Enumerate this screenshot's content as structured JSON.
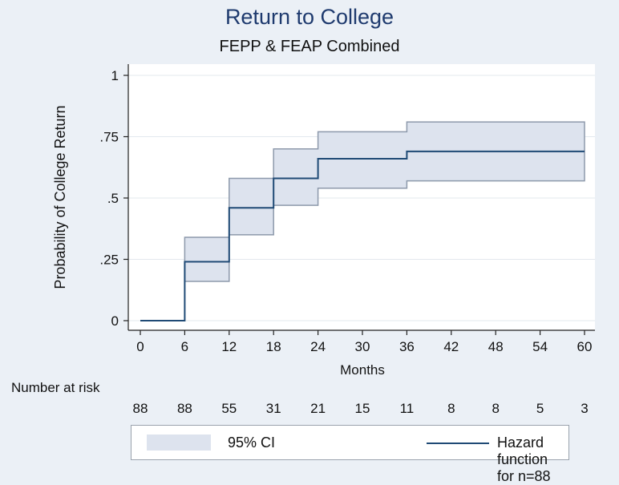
{
  "chart_data": {
    "type": "line",
    "title": "Return to College",
    "subtitle": "FEPP & FEAP Combined",
    "xlabel": "Months",
    "ylabel": "Probability of College Return",
    "xlim": [
      0,
      60
    ],
    "ylim": [
      0,
      1
    ],
    "x_ticks": [
      0,
      6,
      12,
      18,
      24,
      30,
      36,
      42,
      48,
      54,
      60
    ],
    "x_tick_labels": [
      "0",
      "6",
      "12",
      "18",
      "24",
      "30",
      "36",
      "42",
      "48",
      "54",
      "60"
    ],
    "y_ticks": [
      0,
      0.25,
      0.5,
      0.75,
      1
    ],
    "y_tick_labels": [
      "0",
      ".25",
      ".5",
      ".75",
      "1"
    ],
    "grid": true,
    "legend_placement": "bottom",
    "series": [
      {
        "name": "Hazard function for n=88",
        "kind": "step",
        "color": "#1f4a75",
        "x": [
          0,
          6,
          12,
          18,
          24,
          36,
          60
        ],
        "y": [
          0,
          0.24,
          0.46,
          0.58,
          0.66,
          0.69,
          0.69
        ]
      },
      {
        "name": "95% CI",
        "kind": "band",
        "color": "#dde3ee",
        "x": [
          6,
          12,
          18,
          24,
          36,
          60
        ],
        "lower": [
          0.16,
          0.35,
          0.47,
          0.54,
          0.57,
          0.57
        ],
        "upper": [
          0.34,
          0.58,
          0.7,
          0.77,
          0.81,
          0.81
        ]
      }
    ],
    "risk_table": {
      "label": "Number at risk",
      "x": [
        0,
        6,
        12,
        18,
        24,
        30,
        36,
        42,
        48,
        54,
        60
      ],
      "values": [
        "88",
        "88",
        "55",
        "31",
        "21",
        "15",
        "11",
        "8",
        "8",
        "5",
        "3"
      ]
    }
  },
  "legend": {
    "ci_label": "95% CI",
    "line_label": "Hazard function for n=88"
  },
  "colors": {
    "background": "#ebf0f6",
    "plot_area": "#ffffff",
    "title": "#1e3a6e",
    "line": "#1f4a75",
    "ci_fill": "#dde3ee",
    "ci_edge": "#8d99ab"
  }
}
